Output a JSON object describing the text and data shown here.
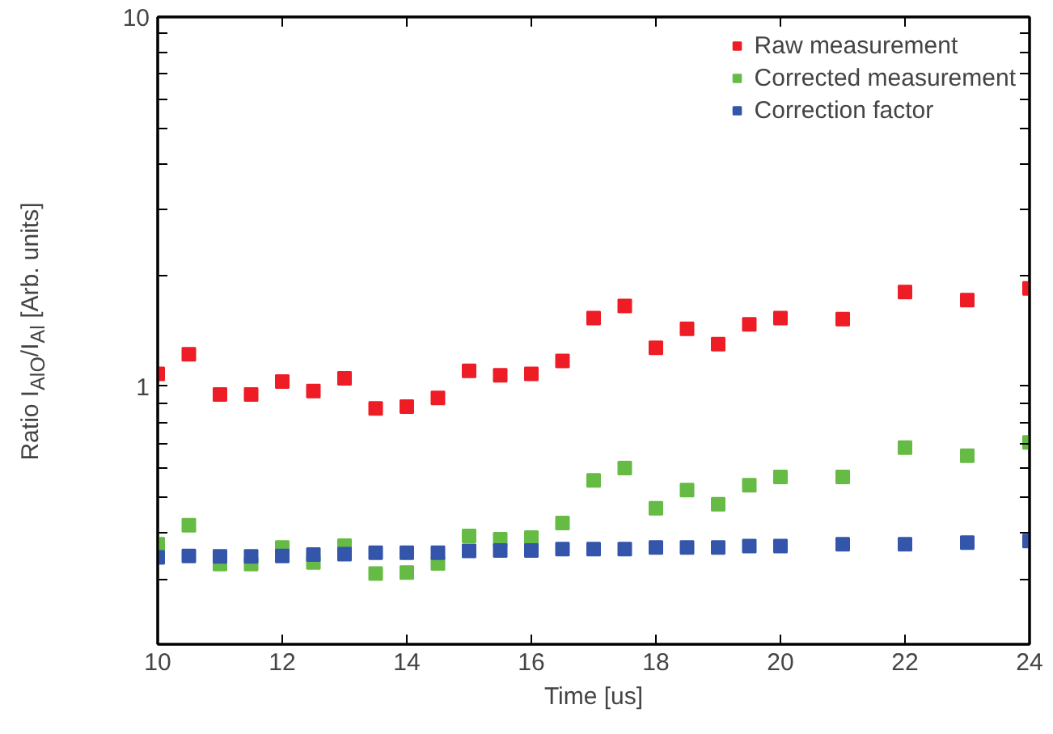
{
  "chart_data": {
    "type": "scatter",
    "xlabel": "Time [us]",
    "ylabel": "Ratio I$_{AlO}$/I$_{Al}$ [Arb. units]",
    "x": [
      10,
      10.5,
      11,
      11.5,
      12,
      12.5,
      13,
      13.5,
      14,
      14.5,
      15,
      15.5,
      16,
      16.5,
      17,
      17.5,
      18,
      18.5,
      19,
      19.5,
      20,
      21,
      22,
      23,
      24
    ],
    "series": [
      {
        "name": "Raw measurement",
        "color": "#ee1c25",
        "values": [
          1.08,
          1.22,
          0.95,
          0.95,
          1.03,
          0.97,
          1.05,
          0.87,
          0.88,
          0.93,
          1.1,
          1.07,
          1.08,
          1.17,
          1.53,
          1.65,
          1.27,
          1.43,
          1.3,
          1.47,
          1.53,
          1.52,
          1.8,
          1.71,
          1.84
        ]
      },
      {
        "name": "Corrected measurement",
        "color": "#66bb44",
        "values": [
          0.373,
          0.42,
          0.33,
          0.33,
          0.366,
          0.333,
          0.37,
          0.311,
          0.313,
          0.331,
          0.393,
          0.385,
          0.389,
          0.426,
          0.556,
          0.6,
          0.467,
          0.523,
          0.479,
          0.539,
          0.568,
          0.568,
          0.682,
          0.648,
          0.704
        ]
      },
      {
        "name": "Correction factor",
        "color": "#3355aa",
        "values": [
          0.344,
          0.347,
          0.346,
          0.346,
          0.347,
          0.35,
          0.351,
          0.354,
          0.354,
          0.354,
          0.358,
          0.359,
          0.359,
          0.362,
          0.362,
          0.362,
          0.366,
          0.366,
          0.366,
          0.369,
          0.369,
          0.373,
          0.373,
          0.377,
          0.381
        ]
      }
    ],
    "xlim": [
      10,
      24
    ],
    "xticks": [
      10,
      12,
      14,
      16,
      18,
      20,
      22,
      24
    ],
    "ylim": [
      0.2,
      10
    ],
    "yticks": [
      {
        "value": 0.2,
        "label": null
      },
      {
        "value": 0.3,
        "label": null
      },
      {
        "value": 0.4,
        "label": null
      },
      {
        "value": 0.5,
        "label": null
      },
      {
        "value": 0.6,
        "label": null
      },
      {
        "value": 0.7,
        "label": null
      },
      {
        "value": 0.8,
        "label": null
      },
      {
        "value": 0.9,
        "label": null
      },
      1,
      {
        "value": 2,
        "label": null
      },
      {
        "value": 3,
        "label": null
      },
      {
        "value": 4,
        "label": null
      },
      {
        "value": 5,
        "label": null
      },
      {
        "value": 6,
        "label": null
      },
      {
        "value": 7,
        "label": null
      },
      {
        "value": 8,
        "label": null
      },
      {
        "value": 9,
        "label": null
      },
      10
    ],
    "log": true,
    "grid": false,
    "legend": "top right",
    "marker": "square"
  }
}
